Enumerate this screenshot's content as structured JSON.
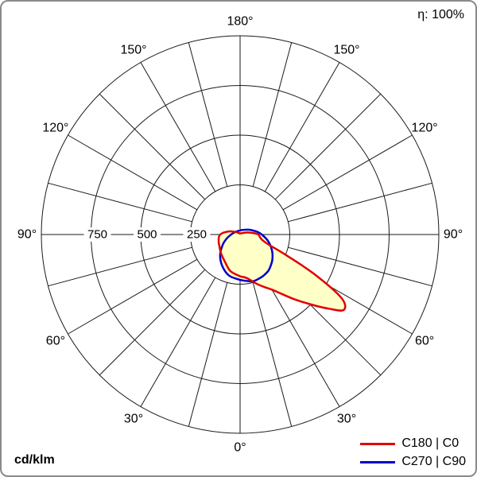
{
  "meta": {
    "efficiency_label": "η: 100%",
    "unit_label": "cd/klm"
  },
  "legend": [
    {
      "label": "C180 | C0",
      "color": "#e00000"
    },
    {
      "label": "C270 | C90",
      "color": "#0000cc"
    }
  ],
  "chart_data": {
    "type": "line",
    "coordinate_system": "polar",
    "description": "Luminous intensity distribution curves of a luminaire; radial values in cd/klm, 0° at nadir (bottom), angles mirrored left/right",
    "unit": "cd/klm",
    "efficiency": "η: 100%",
    "radial_max": 1000,
    "radial_ticks": [
      750,
      500,
      250
    ],
    "grid": {
      "circle_values": [
        250,
        500,
        750,
        1000
      ],
      "spoke_step_deg": 15
    },
    "angle_labels": [
      {
        "angle_deg": 180,
        "label": "180°"
      },
      {
        "angle_deg": 150,
        "label": "150°"
      },
      {
        "angle_deg": -150,
        "label": "150°"
      },
      {
        "angle_deg": 120,
        "label": "120°"
      },
      {
        "angle_deg": -120,
        "label": "120°"
      },
      {
        "angle_deg": 90,
        "label": "90°"
      },
      {
        "angle_deg": -90,
        "label": "90°"
      },
      {
        "angle_deg": 60,
        "label": "60°"
      },
      {
        "angle_deg": -60,
        "label": "60°"
      },
      {
        "angle_deg": 30,
        "label": "30°"
      },
      {
        "angle_deg": -30,
        "label": "30°"
      },
      {
        "angle_deg": 0,
        "label": "0°"
      }
    ],
    "series": [
      {
        "name": "C180 | C0",
        "color": "#e00000",
        "fill": "#ffffc8",
        "points": [
          [
            -180,
            5
          ],
          [
            -165,
            6
          ],
          [
            -150,
            8
          ],
          [
            -135,
            12
          ],
          [
            -120,
            25
          ],
          [
            -105,
            60
          ],
          [
            -90,
            100
          ],
          [
            -75,
            112
          ],
          [
            -60,
            120
          ],
          [
            -45,
            135
          ],
          [
            -30,
            155
          ],
          [
            -15,
            190
          ],
          [
            0,
            210
          ],
          [
            5,
            215
          ],
          [
            10,
            225
          ],
          [
            15,
            245
          ],
          [
            20,
            268
          ],
          [
            25,
            292
          ],
          [
            30,
            320
          ],
          [
            35,
            365
          ],
          [
            40,
            425
          ],
          [
            45,
            495
          ],
          [
            50,
            580
          ],
          [
            54,
            645
          ],
          [
            58,
            600
          ],
          [
            62,
            420
          ],
          [
            66,
            250
          ],
          [
            70,
            160
          ],
          [
            75,
            120
          ],
          [
            80,
            105
          ],
          [
            85,
            98
          ],
          [
            90,
            92
          ],
          [
            95,
            72
          ],
          [
            100,
            52
          ],
          [
            105,
            40
          ],
          [
            110,
            28
          ],
          [
            120,
            15
          ],
          [
            135,
            9
          ],
          [
            150,
            7
          ],
          [
            165,
            6
          ]
        ]
      },
      {
        "name": "C270 | C90",
        "color": "#0000cc",
        "fill": "#ffffc8",
        "points": [
          [
            -180,
            20
          ],
          [
            -165,
            20
          ],
          [
            -150,
            21
          ],
          [
            -135,
            22
          ],
          [
            -120,
            27
          ],
          [
            -105,
            33
          ],
          [
            -90,
            45
          ],
          [
            -75,
            67
          ],
          [
            -60,
            100
          ],
          [
            -45,
            142
          ],
          [
            -30,
            181
          ],
          [
            -15,
            214
          ],
          [
            0,
            228
          ],
          [
            8,
            236
          ],
          [
            16,
            244
          ],
          [
            24,
            241
          ],
          [
            30,
            238
          ],
          [
            38,
            231
          ],
          [
            45,
            219
          ],
          [
            52,
            206
          ],
          [
            60,
            188
          ],
          [
            68,
            168
          ],
          [
            75,
            150
          ],
          [
            82,
            130
          ],
          [
            90,
            109
          ],
          [
            98,
            90
          ],
          [
            105,
            73
          ],
          [
            112,
            60
          ],
          [
            120,
            49
          ],
          [
            135,
            34
          ],
          [
            150,
            27
          ],
          [
            165,
            23
          ]
        ]
      }
    ]
  }
}
